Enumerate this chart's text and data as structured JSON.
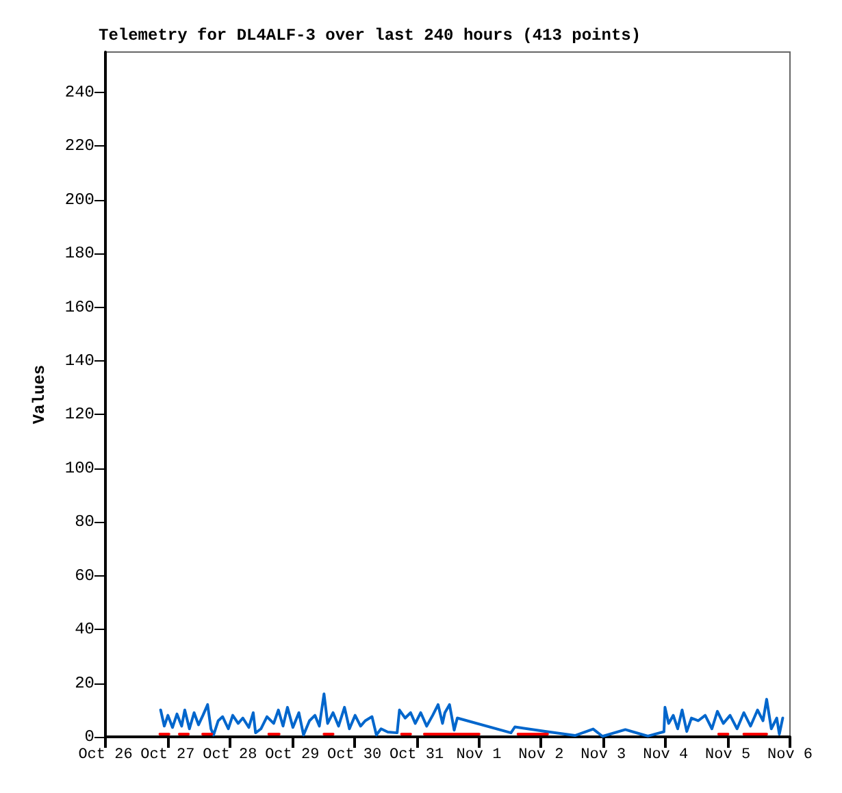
{
  "chart_data": {
    "type": "line",
    "title": "Telemetry for DL4ALF-3 over last 240 hours (413 points)",
    "ylabel": "Values",
    "xlim": [
      "--10-26",
      "--11-06"
    ],
    "xticks": [
      {
        "value": "--10-26",
        "label": "Oct 26"
      },
      {
        "value": "--10-27",
        "label": "Oct 27"
      },
      {
        "value": "--10-28",
        "label": "Oct 28"
      },
      {
        "value": "--10-29",
        "label": "Oct 29"
      },
      {
        "value": "--10-30",
        "label": "Oct 30"
      },
      {
        "value": "--10-31",
        "label": "Oct 31"
      },
      {
        "value": "--11-01",
        "label": "Nov 1"
      },
      {
        "value": "--11-02",
        "label": "Nov 2"
      },
      {
        "value": "--11-03",
        "label": "Nov 3"
      },
      {
        "value": "--11-04",
        "label": "Nov 4"
      },
      {
        "value": "--11-05",
        "label": "Nov 5"
      },
      {
        "value": "--11-06",
        "label": "Nov 6"
      }
    ],
    "ylim": [
      0,
      255
    ],
    "yticks": [
      0,
      20,
      40,
      60,
      80,
      100,
      120,
      140,
      160,
      180,
      200,
      220,
      240
    ],
    "grid": false,
    "marker": "none",
    "line_style": "solid",
    "series": [
      {
        "color": "#0066cc",
        "x": [
          "--10-26T21:18",
          "--10-26T22:42",
          "--10-27T00:06",
          "--10-27T01:52",
          "--10-27T03:36",
          "--10-27T05:24",
          "--10-27T06:36",
          "--10-27T08:24",
          "--10-27T10:12",
          "--10-27T11:54",
          "--10-27T13:36",
          "--10-27T15:24",
          "--10-27T16:42",
          "--10-27T17:42",
          "--10-27T19:30",
          "--10-27T21:12",
          "--10-27T23:24",
          "--10-28T01:06",
          "--10-28T03:12",
          "--10-28T05:00",
          "--10-28T07:18",
          "--10-28T09:00",
          "--10-28T09:54",
          "--10-28T12:00",
          "--10-28T14:18",
          "--10-28T16:54",
          "--10-28T18:42",
          "--10-28T20:30",
          "--10-28T22:12",
          "--10-29T00:18",
          "--10-29T02:36",
          "--10-29T04:24",
          "--10-29T06:42",
          "--10-29T08:48",
          "--10-29T10:30",
          "--10-29T12:18",
          "--10-29T13:42",
          "--10-29T15:48",
          "--10-29T17:54",
          "--10-29T20:12",
          "--10-29T22:06",
          "--10-30T00:18",
          "--10-30T02:24",
          "--10-30T04:12",
          "--10-30T06:48",
          "--10-30T08:30",
          "--10-30T10:18",
          "--10-30T12:54",
          "--10-30T16:30",
          "--10-30T17:24",
          "--10-30T19:36",
          "--10-30T21:42",
          "--10-30T23:30",
          "--10-31T01:36",
          "--10-31T03:54",
          "--10-31T06:12",
          "--10-31T08:18",
          "--10-31T10:00",
          "--10-31T10:54",
          "--10-31T12:42",
          "--10-31T14:30",
          "--10-31T15:42",
          "--11-01T12:24",
          "--11-01T13:54",
          "--11-02T02:30",
          "--11-02T13:06",
          "--11-02T20:06",
          "--11-02T23:42",
          "--11-03T08:30",
          "--11-03T13:48",
          "--11-03T17:12",
          "--11-03T23:24",
          "--11-03T23:48",
          "--11-04T01:12",
          "--11-04T03:00",
          "--11-04T04:42",
          "--11-04T06:24",
          "--11-04T08:12",
          "--11-04T10:00",
          "--11-04T12:36",
          "--11-04T15:18",
          "--11-04T17:54",
          "--11-04T20:00",
          "--11-04T22:18",
          "--11-05T00:54",
          "--11-05T03:36",
          "--11-05T06:12",
          "--11-05T08:48",
          "--11-05T11:30",
          "--11-05T13:36",
          "--11-05T15:00",
          "--11-05T16:48",
          "--11-05T18:54",
          "--11-05T19:54",
          "--11-05T21:12"
        ],
        "values": [
          10,
          4,
          8,
          3.5,
          8.5,
          4,
          10,
          3,
          9,
          4.5,
          8,
          12,
          3,
          0.7,
          6,
          7.5,
          3,
          8,
          5,
          7,
          3.5,
          9,
          1.5,
          3,
          7.5,
          5,
          10,
          4,
          11,
          3.5,
          9,
          0.7,
          6,
          8,
          4,
          16,
          5,
          9,
          4,
          11,
          3,
          8,
          4,
          6,
          7.5,
          0.7,
          3,
          1.8,
          1.5,
          10,
          7,
          9,
          5,
          9,
          4,
          8,
          12,
          5,
          9,
          12,
          2.5,
          7,
          1.5,
          3.7,
          1.9,
          0.5,
          2.9,
          0.2,
          2.7,
          1.2,
          0.3,
          1.9,
          11,
          5,
          8,
          3,
          10,
          2,
          7,
          6,
          8,
          3,
          9.5,
          5,
          8,
          3,
          9,
          4,
          10,
          6,
          14,
          3,
          7,
          1,
          7
        ]
      },
      {
        "color": "#ff0000",
        "x": [
          "--10-26T21:00",
          "--10-27T00:30",
          "--10-27T02:30",
          "--10-27T04:30",
          "--10-27T08:00",
          "--10-27T10:00",
          "--10-27T13:30",
          "--10-27T17:00",
          "--10-28T04:00",
          "--10-28T15:00",
          "--10-28T19:00",
          "--10-29T02:00",
          "--10-29T12:18",
          "--10-29T15:48",
          "--10-30T05:00",
          "--10-30T18:12",
          "--10-30T21:42",
          "--10-31T00:00",
          "--10-31T03:00",
          "--11-01T00:06",
          "--11-01T08:00",
          "--11-01T15:06",
          "--11-02T02:30",
          "--11-03T12:00",
          "--11-04T20:30",
          "--11-05T00:06",
          "--11-05T03:00",
          "--11-05T06:12",
          "--11-05T15:00"
        ],
        "values": [
          1,
          1,
          null,
          1,
          1,
          null,
          1,
          1,
          null,
          1,
          1,
          null,
          1,
          1,
          null,
          1,
          1,
          null,
          1,
          1,
          null,
          1,
          1,
          null,
          1,
          1,
          null,
          1,
          1
        ]
      }
    ]
  }
}
